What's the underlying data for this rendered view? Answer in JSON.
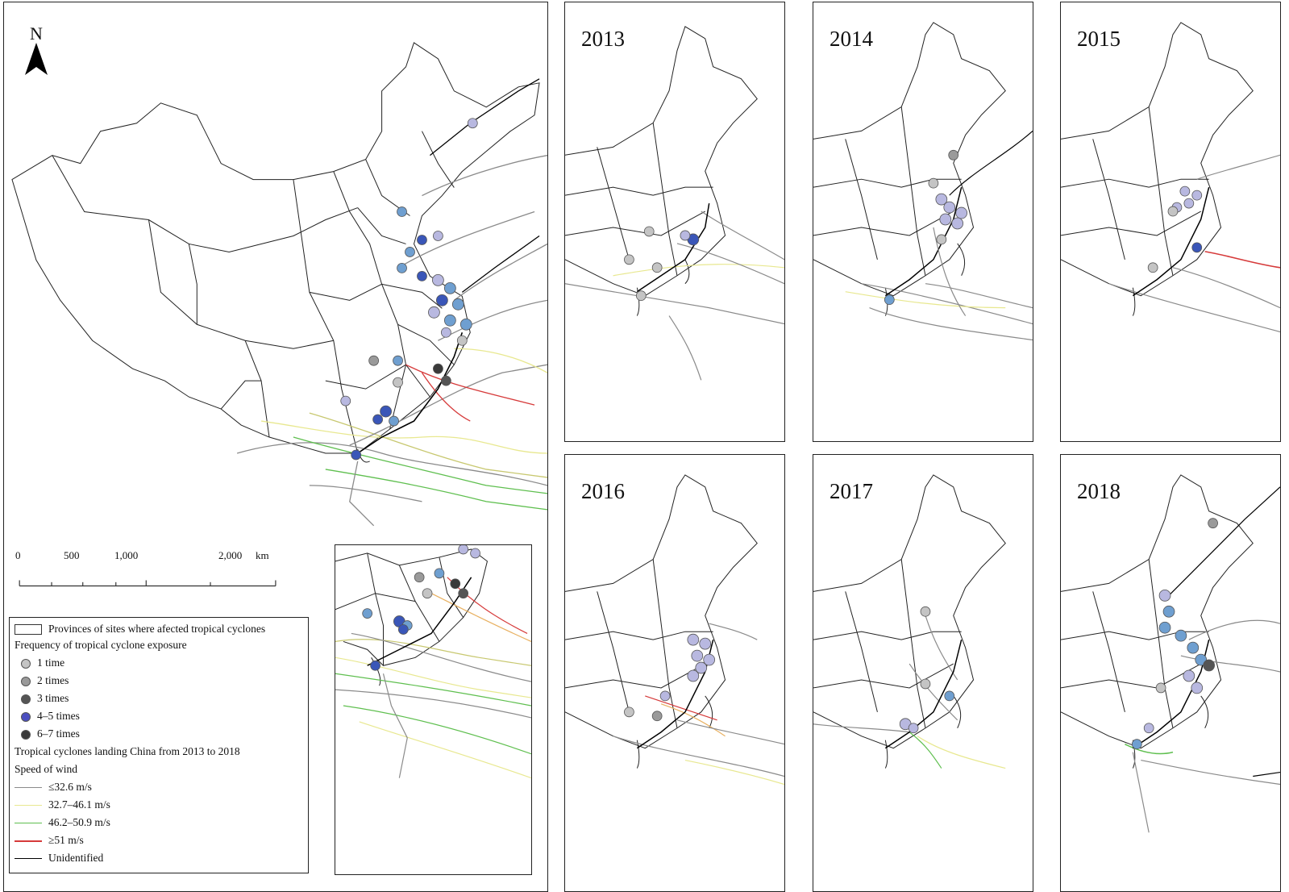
{
  "main": {
    "north_label": "N",
    "scale_labels": [
      "0",
      "500",
      "1,000",
      "2,000",
      "km"
    ]
  },
  "legend": {
    "provinces_label": "Provinces of sites where afected tropical cyclones",
    "frequency_title": "Frequency of tropical cyclone exposure",
    "frequency_items": [
      {
        "label": "1 time",
        "color": "#c4c4c4"
      },
      {
        "label": "2 times",
        "color": "#9a9a9a"
      },
      {
        "label": "3 times",
        "color": "#555555"
      },
      {
        "label": "4–5 times",
        "color": "#4b4fc0"
      },
      {
        "label": "6–7 times",
        "color": "#3a3a3a"
      }
    ],
    "tracks_title": "Tropical cyclones landing China from 2013 to 2018",
    "speed_title": "Speed of wind",
    "speed_items": [
      {
        "label": "≤32.6 m/s",
        "color": "#8a8a8a"
      },
      {
        "label": "32.7–46.1 m/s",
        "color": "#e8e890"
      },
      {
        "label": "46.2–50.9 m/s",
        "color": "#5fbf4f"
      },
      {
        "label": "≥51 m/s",
        "color": "#d63a3a"
      },
      {
        "label": "Unidentified",
        "color": "#000000"
      }
    ]
  },
  "years": [
    {
      "label": "2013"
    },
    {
      "label": "2014"
    },
    {
      "label": "2015"
    },
    {
      "label": "2016"
    },
    {
      "label": "2017"
    },
    {
      "label": "2018"
    }
  ],
  "colors": {
    "border": "#222222",
    "dot_light": "#b8b8e0",
    "dot_blue": "#6f9fd0",
    "dot_dark_blue": "#3a56b8"
  }
}
